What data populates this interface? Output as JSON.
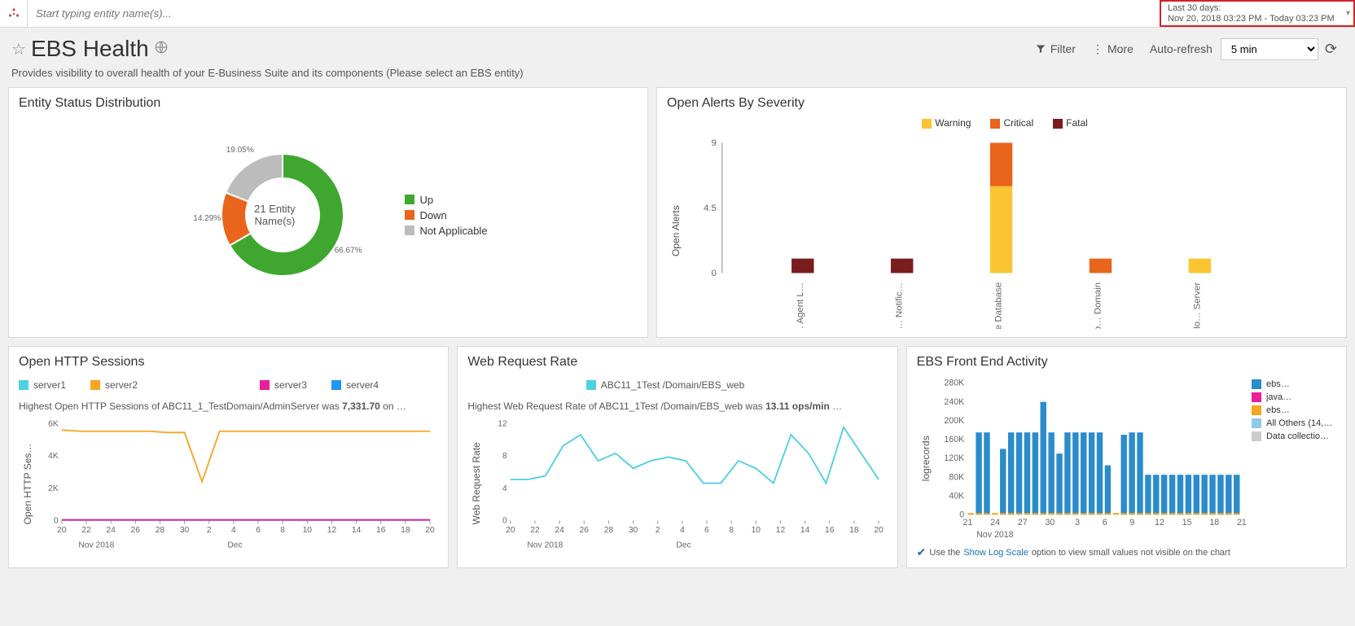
{
  "topbar": {
    "search_placeholder": "Start typing entity name(s)...",
    "daterange_title": "Last 30 days:",
    "daterange_detail": "Nov 20, 2018 03:23 PM - Today 03:23 PM"
  },
  "header": {
    "title": "EBS Health",
    "filter_label": "Filter",
    "more_label": "More",
    "autorefresh_label": "Auto-refresh",
    "autorefresh_value": "5 min"
  },
  "subtitle": "Provides visibility to overall health of your E-Business Suite and its components (Please select an EBS entity)",
  "donut": {
    "title": "Entity Status Distribution",
    "center_top": "21 Entity",
    "center_bottom": "Name(s)",
    "segments": [
      {
        "label": "Up",
        "pct": 66.67,
        "color": "#3fa72f",
        "disp": "66.67%"
      },
      {
        "label": "Down",
        "pct": 14.29,
        "color": "#e8651b",
        "disp": "14.29%"
      },
      {
        "label": "Not Applicable",
        "pct": 19.05,
        "color": "#bcbcbc",
        "disp": "19.05%"
      }
    ]
  },
  "alerts": {
    "title": "Open Alerts By Severity",
    "ylabel": "Open Alerts",
    "ymax": 9,
    "ymid": 4.5,
    "legend": [
      {
        "label": "Warning",
        "color": "#fbc531"
      },
      {
        "label": "Critical",
        "color": "#e8651b"
      },
      {
        "label": "Fatal",
        "color": "#7b1c1c"
      }
    ],
    "categories": [
      "EBS Workfl… Agent L…",
      "EBS Workfl… Notific…",
      "Oracle Database",
      "Weblo… Domain",
      "Weblo… Server"
    ],
    "stacks": [
      [
        {
          "v": 1,
          "c": "#7b1c1c"
        }
      ],
      [
        {
          "v": 1,
          "c": "#7b1c1c"
        }
      ],
      [
        {
          "v": 6,
          "c": "#fbc531"
        },
        {
          "v": 3,
          "c": "#e8651b"
        }
      ],
      [
        {
          "v": 1,
          "c": "#e8651b"
        }
      ],
      [
        {
          "v": 1,
          "c": "#fbc531"
        }
      ]
    ]
  },
  "http": {
    "title": "Open HTTP Sessions",
    "ylabel": "Open HTTP Ses…",
    "legend": [
      {
        "label": "server1",
        "color": "#4dd0e1"
      },
      {
        "label": "server3",
        "color": "#e91e9b"
      },
      {
        "label": "server2",
        "color": "#f5a623"
      },
      {
        "label": "server4",
        "color": "#2196f3"
      }
    ],
    "note_pre": "Highest Open HTTP Sessions of ",
    "note_entity": "ABC11_1_TestDomain/AdminServer",
    "note_mid": " was ",
    "note_val": "7,331.70",
    "note_post": " on …",
    "ymax": 6000,
    "yticks": [
      "6K",
      "4K",
      "2K",
      "0"
    ],
    "xticks": [
      "20",
      "22",
      "24",
      "26",
      "28",
      "30",
      "2",
      "4",
      "6",
      "8",
      "10",
      "12",
      "14",
      "16",
      "18",
      "20"
    ],
    "xlab_left": "Nov 2018",
    "xlab_mid": "Dec",
    "series_orange": [
      7000,
      6900,
      6900,
      6900,
      6900,
      6900,
      6800,
      6800,
      3000,
      6900,
      6900,
      6900,
      6900,
      6900,
      6900,
      6900,
      6900,
      6900,
      6900,
      6900,
      6900,
      6900
    ],
    "series_flat": [
      50,
      50,
      50,
      50,
      50,
      50,
      50,
      50,
      50,
      50,
      50,
      50,
      50,
      50,
      50,
      50,
      50,
      50,
      50,
      50,
      50,
      50
    ]
  },
  "webreq": {
    "title": "Web Request Rate",
    "ylabel": "Web Request Rate",
    "legend": [
      {
        "label": "ABC11_1Test /Domain/EBS_web",
        "color": "#4dd0e1"
      }
    ],
    "note_pre": "Highest Web Request Rate of ",
    "note_entity": "ABC11_1Test /Domain/EBS_web",
    "note_mid": " was ",
    "note_val": "13.11 ops/min",
    "note_post": " …",
    "ymax": 12,
    "yticks": [
      "12",
      "8",
      "4",
      "0"
    ],
    "xticks": [
      "20",
      "22",
      "24",
      "26",
      "28",
      "30",
      "2",
      "4",
      "6",
      "8",
      "10",
      "12",
      "14",
      "16",
      "18",
      "20"
    ],
    "xlab_left": "Nov 2018",
    "xlab_mid": "Dec",
    "series": [
      5.5,
      5.5,
      6,
      10,
      11.5,
      8,
      9,
      7,
      8,
      8.5,
      8,
      5,
      5,
      8,
      7,
      5,
      11.5,
      9,
      5,
      12.5,
      9,
      5.5
    ]
  },
  "frontend": {
    "title": "EBS Front End Activity",
    "ylabel": "logrecords",
    "ymax": 280000,
    "yticks": [
      "280K",
      "240K",
      "200K",
      "160K",
      "120K",
      "80K",
      "40K",
      "0"
    ],
    "legend": [
      {
        "label": "ebs…",
        "color": "#2b8ccb"
      },
      {
        "label": "java…",
        "color": "#e91e9b"
      },
      {
        "label": "ebs…",
        "color": "#f5a623"
      },
      {
        "label": "All Others (14,…",
        "color": "#8fc9e8"
      },
      {
        "label": "Data collectio…",
        "color": "#cccccc"
      }
    ],
    "xticks": [
      "21",
      "24",
      "27",
      "30",
      "3",
      "6",
      "9",
      "12",
      "15",
      "18",
      "21"
    ],
    "xlab_left": "Nov 2018",
    "bars": [
      0,
      175000,
      175000,
      0,
      140000,
      175000,
      175000,
      175000,
      175000,
      240000,
      175000,
      130000,
      175000,
      175000,
      175000,
      175000,
      175000,
      105000,
      0,
      170000,
      175000,
      175000,
      85000,
      85000,
      85000,
      85000,
      85000,
      85000,
      85000,
      85000,
      85000,
      85000,
      85000,
      85000
    ],
    "tip_pre": "Use the ",
    "tip_link": "Show Log Scale",
    "tip_post": " option to view small values not visible on the chart"
  }
}
